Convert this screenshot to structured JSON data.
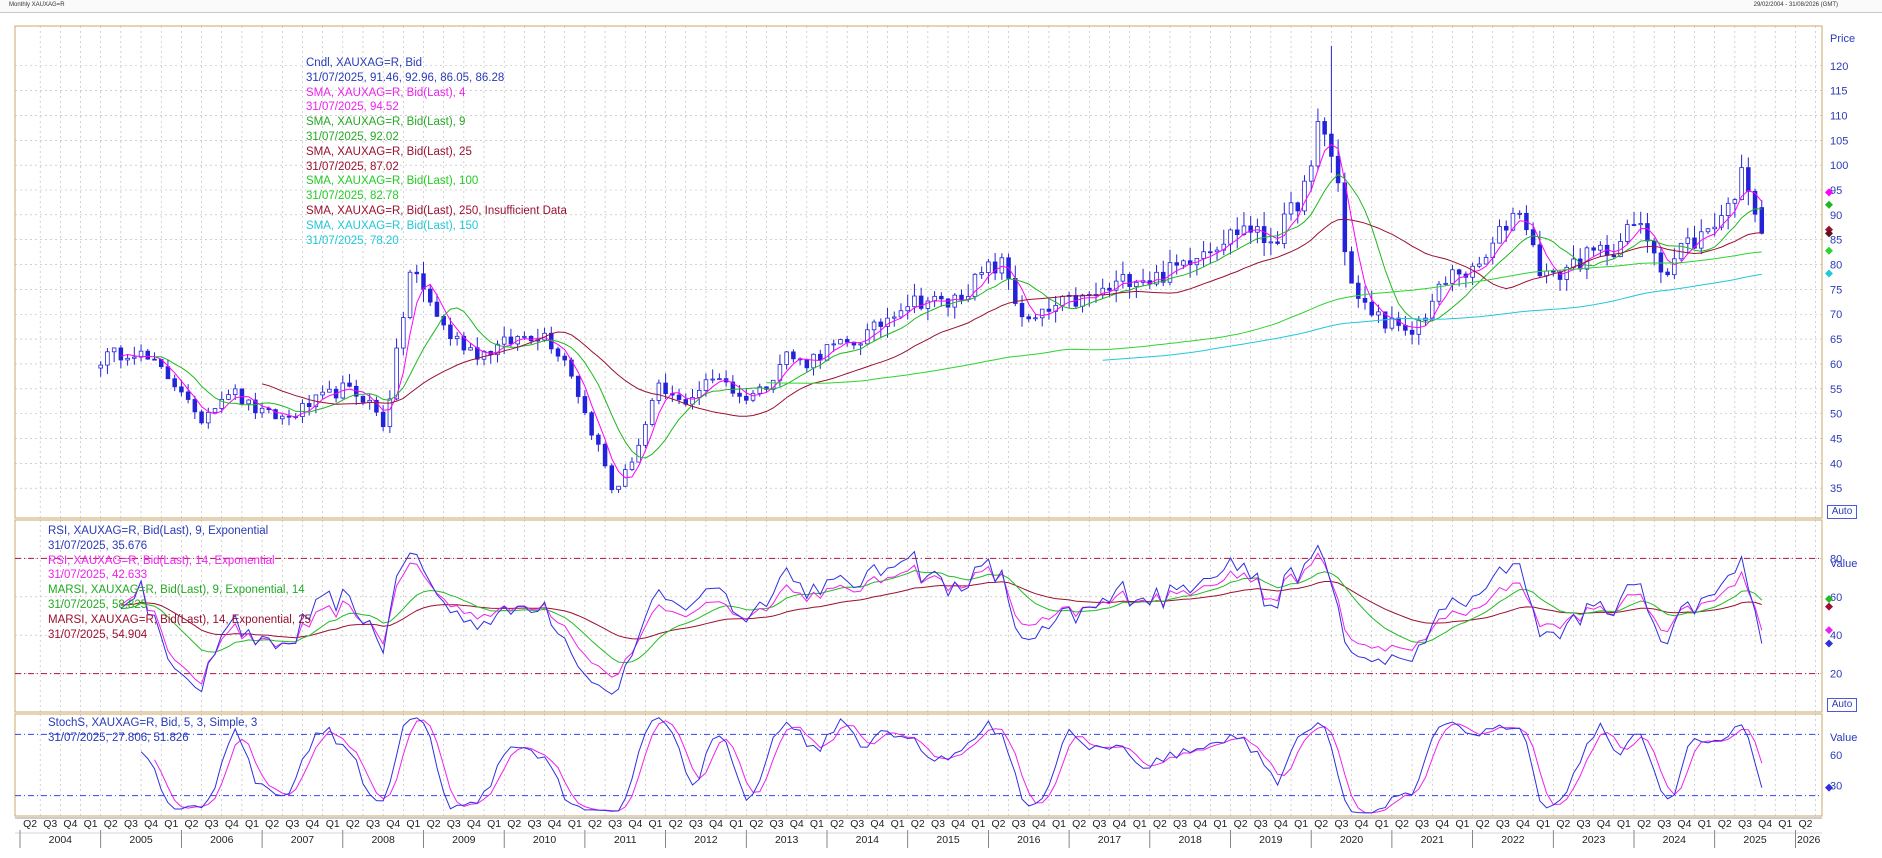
{
  "header": {
    "left": "Monthly XAUXAG=R",
    "right": "29/02/2004 - 31/08/2026 (GMT)"
  },
  "colors": {
    "candle": "#2323d8",
    "sma4": "#ff00ff",
    "sma9": "#1eb81e",
    "sma25": "#9b1030",
    "sma100": "#2ed42e",
    "sma150": "#22c8d8",
    "grid": "#b4b4b4",
    "axis_text": "#2a3ab8",
    "rsi9": "#2f2fe0",
    "rsi14": "#ee22ee",
    "marsi9": "#22bb22",
    "marsi25": "#9b1030",
    "ob_line": "#b01538",
    "stoch_k": "#2f2fe0",
    "stoch_d": "#ee22ee",
    "stoch_line": "#3344ee"
  },
  "legend": {
    "price": [
      {
        "text": "Cndl, XAUXAG=R, Bid",
        "color": "#2a3ab8"
      },
      {
        "text": "31/07/2025, 91.46, 92.96, 86.05, 86.28",
        "color": "#2a3ab8"
      },
      {
        "text": "SMA, XAUXAG=R, Bid(Last), 4",
        "color": "#ee22ee"
      },
      {
        "text": "31/07/2025, 94.52",
        "color": "#ee22ee"
      },
      {
        "text": "SMA, XAUXAG=R, Bid(Last), 9",
        "color": "#22aa22"
      },
      {
        "text": "31/07/2025, 92.02",
        "color": "#22aa22"
      },
      {
        "text": "SMA, XAUXAG=R, Bid(Last), 25",
        "color": "#9b1030"
      },
      {
        "text": "31/07/2025, 87.02",
        "color": "#9b1030"
      },
      {
        "text": "SMA, XAUXAG=R, Bid(Last), 100",
        "color": "#22cc22"
      },
      {
        "text": "31/07/2025, 82.78",
        "color": "#22cc22"
      },
      {
        "text": "SMA, XAUXAG=R, Bid(Last), 250, Insufficient Data",
        "color": "#9b1030"
      },
      {
        "text": "SMA, XAUXAG=R, Bid(Last), 150",
        "color": "#22c8d8"
      },
      {
        "text": "31/07/2025, 78.20",
        "color": "#22c8d8"
      }
    ],
    "rsi": [
      {
        "text": "RSI, XAUXAG=R, Bid(Last), 9, Exponential",
        "color": "#2a3ab8"
      },
      {
        "text": "31/07/2025, 35.676",
        "color": "#2a3ab8"
      },
      {
        "text": "RSI, XAUXAG=R, Bid(Last), 14, Exponential",
        "color": "#ee22ee"
      },
      {
        "text": "31/07/2025, 42.633",
        "color": "#ee22ee"
      },
      {
        "text": "MARSI, XAUXAG=R, Bid(Last), 9, Exponential, 14",
        "color": "#22aa22"
      },
      {
        "text": "31/07/2025, 58.825",
        "color": "#22aa22"
      },
      {
        "text": "MARSI, XAUXAG=R, Bid(Last), 14, Exponential, 25",
        "color": "#9b1030"
      },
      {
        "text": "31/07/2025, 54.904",
        "color": "#9b1030"
      }
    ],
    "stoch": [
      {
        "text": "StochS, XAUXAG=R, Bid, 5, 3, Simple, 3",
        "color": "#2a3ab8"
      },
      {
        "text": "31/07/2025, 27.806, 51.826",
        "color": "#2a3ab8"
      }
    ]
  },
  "axis_titles": {
    "price": "Price",
    "rsi": "Value",
    "stoch": "Value"
  },
  "auto_label": "Auto",
  "chart_data": [
    {
      "type": "candlestick",
      "panel": "price",
      "ylim": [
        29,
        128
      ],
      "yticks": [
        35,
        40,
        45,
        50,
        55,
        60,
        65,
        70,
        75,
        80,
        85,
        90,
        95,
        100,
        105,
        110,
        115,
        120
      ],
      "x_start": "2004-02",
      "x_end": "2026-08",
      "waypoints": [
        [
          2005.0,
          61
        ],
        [
          2005.4,
          63
        ],
        [
          2005.8,
          58
        ],
        [
          2006.0,
          55
        ],
        [
          2006.2,
          48
        ],
        [
          2006.4,
          52
        ],
        [
          2006.6,
          55
        ],
        [
          2006.8,
          52
        ],
        [
          2007.0,
          50
        ],
        [
          2007.3,
          49
        ],
        [
          2007.6,
          52
        ],
        [
          2008.0,
          55
        ],
        [
          2008.3,
          53
        ],
        [
          2008.5,
          48
        ],
        [
          2008.6,
          55
        ],
        [
          2008.75,
          70
        ],
        [
          2008.85,
          80
        ],
        [
          2008.95,
          76
        ],
        [
          2009.1,
          72
        ],
        [
          2009.3,
          66
        ],
        [
          2009.5,
          64
        ],
        [
          2009.7,
          62
        ],
        [
          2010.0,
          64
        ],
        [
          2010.3,
          66
        ],
        [
          2010.5,
          66
        ],
        [
          2010.8,
          60
        ],
        [
          2011.0,
          50
        ],
        [
          2011.2,
          42
        ],
        [
          2011.35,
          34
        ],
        [
          2011.5,
          38
        ],
        [
          2011.7,
          45
        ],
        [
          2011.9,
          55
        ],
        [
          2012.2,
          52
        ],
        [
          2012.5,
          56
        ],
        [
          2012.7,
          58
        ],
        [
          2012.9,
          53
        ],
        [
          2013.2,
          55
        ],
        [
          2013.5,
          62
        ],
        [
          2013.7,
          60
        ],
        [
          2014.0,
          63
        ],
        [
          2014.3,
          64
        ],
        [
          2014.6,
          67
        ],
        [
          2014.9,
          72
        ],
        [
          2015.2,
          73
        ],
        [
          2015.5,
          72
        ],
        [
          2015.8,
          76
        ],
        [
          2016.0,
          79
        ],
        [
          2016.2,
          80
        ],
        [
          2016.35,
          72
        ],
        [
          2016.5,
          68
        ],
        [
          2016.7,
          70
        ],
        [
          2016.9,
          72
        ],
        [
          2017.2,
          73
        ],
        [
          2017.5,
          75
        ],
        [
          2017.8,
          78
        ],
        [
          2018.0,
          77
        ],
        [
          2018.3,
          79
        ],
        [
          2018.6,
          83
        ],
        [
          2018.9,
          85
        ],
        [
          2019.2,
          88
        ],
        [
          2019.4,
          85
        ],
        [
          2019.6,
          86
        ],
        [
          2019.8,
          92
        ],
        [
          2020.0,
          98
        ],
        [
          2020.1,
          110
        ],
        [
          2020.2,
          105
        ],
        [
          2020.35,
          95
        ],
        [
          2020.45,
          78
        ],
        [
          2020.6,
          72
        ],
        [
          2020.8,
          70
        ],
        [
          2021.0,
          68
        ],
        [
          2021.2,
          65
        ],
        [
          2021.4,
          70
        ],
        [
          2021.6,
          75
        ],
        [
          2021.8,
          79
        ],
        [
          2022.0,
          78
        ],
        [
          2022.2,
          82
        ],
        [
          2022.4,
          88
        ],
        [
          2022.6,
          92
        ],
        [
          2022.8,
          80
        ],
        [
          2023.0,
          77
        ],
        [
          2023.2,
          80
        ],
        [
          2023.5,
          82
        ],
        [
          2023.8,
          84
        ],
        [
          2024.0,
          88
        ],
        [
          2024.2,
          85
        ],
        [
          2024.4,
          78
        ],
        [
          2024.6,
          84
        ],
        [
          2024.8,
          85
        ],
        [
          2025.0,
          89
        ],
        [
          2025.2,
          92
        ],
        [
          2025.3,
          98
        ],
        [
          2025.4,
          97
        ],
        [
          2025.5,
          92
        ],
        [
          2025.58,
          86.28
        ]
      ],
      "last_candle": {
        "date": "31/07/2025",
        "open": 91.46,
        "high": 92.96,
        "low": 86.05,
        "close": 86.28
      },
      "sma": [
        {
          "period": 4,
          "last": 94.52
        },
        {
          "period": 9,
          "last": 92.02
        },
        {
          "period": 25,
          "last": 87.02
        },
        {
          "period": 100,
          "last": 82.78
        },
        {
          "period": 150,
          "last": 78.2
        }
      ]
    },
    {
      "type": "line",
      "panel": "rsi",
      "ylim": [
        0,
        100
      ],
      "yticks": [
        20,
        40,
        60,
        80
      ],
      "hlines": [
        80,
        20
      ],
      "last_values": {
        "rsi9": 35.676,
        "rsi14": 42.633,
        "marsi9": 58.825,
        "marsi25": 54.904
      }
    },
    {
      "type": "line",
      "panel": "stoch",
      "ylim": [
        0,
        100
      ],
      "yticks": [
        30,
        60
      ],
      "hlines": [
        80,
        20
      ],
      "last_values": {
        "k": 27.806,
        "d": 51.826
      }
    }
  ],
  "xaxis": {
    "quarters": [
      "Q1",
      "Q2",
      "Q3",
      "Q4"
    ],
    "years": [
      "2004",
      "2005",
      "2006",
      "2007",
      "2008",
      "2009",
      "2010",
      "2011",
      "2012",
      "2013",
      "2014",
      "2015",
      "2016",
      "2017",
      "2018",
      "2019",
      "2020",
      "2021",
      "2022",
      "2023",
      "2024",
      "2025",
      "2026"
    ]
  }
}
